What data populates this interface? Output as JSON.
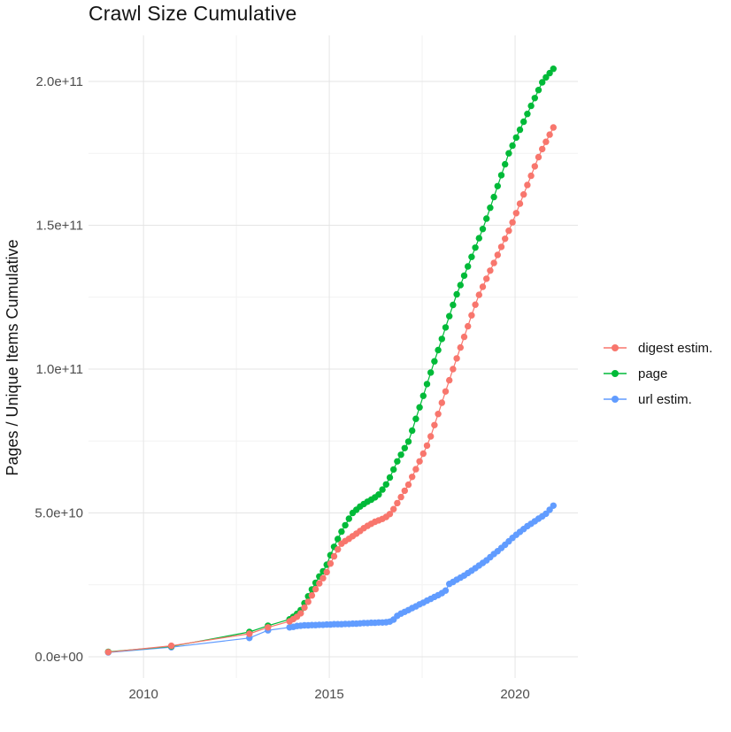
{
  "chart_data": {
    "type": "line",
    "title": "Crawl Size Cumulative",
    "xlabel": "",
    "ylabel": "Pages / Unique Items Cumulative",
    "values_unit_note": "y values stored in billions (1e9)",
    "x_ticks": [
      {
        "value": 2010,
        "label": "2010"
      },
      {
        "value": 2015,
        "label": "2015"
      },
      {
        "value": 2020,
        "label": "2020"
      }
    ],
    "x_minor_ticks": [
      2012.5,
      2017.5
    ],
    "x_range": [
      2008.52,
      2021.69
    ],
    "y_ticks": [
      {
        "value": 0,
        "label": "0.0e+00"
      },
      {
        "value": 50,
        "label": "5.0e+10"
      },
      {
        "value": 100,
        "label": "1.0e+11"
      },
      {
        "value": 150,
        "label": "1.5e+11"
      },
      {
        "value": 200,
        "label": "2.0e+11"
      }
    ],
    "y_minor_ticks": [
      25,
      75,
      125,
      175
    ],
    "y_range": [
      -7.4,
      216
    ],
    "grid": {
      "major_color": "#E5E5E5",
      "minor_color": "#F2F2F2",
      "background": "#FFFFFF"
    },
    "legend_position": "right",
    "x": [
      2009.05,
      2010.75,
      2012.85,
      2013.35,
      2013.93,
      2014.03,
      2014.13,
      2014.23,
      2014.33,
      2014.43,
      2014.53,
      2014.63,
      2014.73,
      2014.83,
      2014.93,
      2015.03,
      2015.13,
      2015.23,
      2015.33,
      2015.43,
      2015.53,
      2015.63,
      2015.73,
      2015.83,
      2015.93,
      2016.03,
      2016.13,
      2016.23,
      2016.33,
      2016.43,
      2016.53,
      2016.63,
      2016.73,
      2016.83,
      2016.93,
      2017.03,
      2017.13,
      2017.23,
      2017.33,
      2017.43,
      2017.53,
      2017.63,
      2017.73,
      2017.83,
      2017.93,
      2018.03,
      2018.13,
      2018.23,
      2018.33,
      2018.43,
      2018.53,
      2018.63,
      2018.73,
      2018.83,
      2018.93,
      2019.03,
      2019.13,
      2019.23,
      2019.33,
      2019.43,
      2019.53,
      2019.63,
      2019.73,
      2019.83,
      2019.93,
      2020.03,
      2020.13,
      2020.23,
      2020.33,
      2020.43,
      2020.53,
      2020.63,
      2020.73,
      2020.83,
      2020.93,
      2021.03
    ],
    "series": [
      {
        "name": "digest estim.",
        "color": "#F8766D",
        "values": [
          1.6,
          3.8,
          8.0,
          10.2,
          12.3,
          13.1,
          13.9,
          15.1,
          17.1,
          19.1,
          21.3,
          23.5,
          25.5,
          27.3,
          29.4,
          32.4,
          34.9,
          37.3,
          39.3,
          40.2,
          41.0,
          41.9,
          42.8,
          43.7,
          44.7,
          45.5,
          46.2,
          46.9,
          47.4,
          47.9,
          48.6,
          49.6,
          51.3,
          53.4,
          55.5,
          57.7,
          59.8,
          62.5,
          65.2,
          67.9,
          70.6,
          73.4,
          76.6,
          80.5,
          84.4,
          88.3,
          92.2,
          96.1,
          100.0,
          103.7,
          107.5,
          111.2,
          114.9,
          118.7,
          122.4,
          125.8,
          128.6,
          131.4,
          134.2,
          136.9,
          139.7,
          142.5,
          145.3,
          148.1,
          151.0,
          154.2,
          157.5,
          160.7,
          164.0,
          167.2,
          170.5,
          173.7,
          176.5,
          179.0,
          181.5,
          184.0
        ]
      },
      {
        "name": "page",
        "color": "#00BA38",
        "values": [
          1.7,
          3.6,
          8.6,
          10.8,
          13.0,
          13.9,
          14.9,
          16.2,
          18.6,
          21.0,
          23.4,
          25.7,
          27.9,
          29.7,
          32.0,
          35.3,
          38.2,
          40.9,
          43.5,
          45.7,
          48.0,
          50.0,
          51.1,
          52.2,
          53.1,
          53.9,
          54.6,
          55.4,
          56.4,
          58.1,
          59.9,
          62.3,
          65.1,
          67.9,
          70.2,
          72.5,
          74.8,
          78.6,
          82.7,
          86.7,
          90.7,
          94.8,
          98.8,
          102.7,
          106.6,
          110.5,
          114.5,
          118.4,
          122.3,
          126.0,
          129.2,
          132.5,
          135.7,
          139.0,
          142.2,
          145.5,
          148.7,
          152.3,
          156.1,
          159.8,
          163.6,
          167.4,
          171.2,
          175.0,
          177.7,
          180.5,
          183.2,
          186.0,
          188.7,
          191.5,
          194.2,
          197.0,
          199.7,
          201.4,
          202.9,
          204.4
        ]
      },
      {
        "name": "url estim.",
        "color": "#619CFF",
        "values": [
          1.5,
          3.3,
          6.5,
          9.2,
          10.2,
          10.4,
          10.7,
          10.8,
          10.9,
          10.9,
          11.0,
          11.0,
          11.1,
          11.1,
          11.2,
          11.2,
          11.3,
          11.3,
          11.3,
          11.4,
          11.4,
          11.5,
          11.5,
          11.6,
          11.7,
          11.7,
          11.8,
          11.8,
          11.9,
          11.9,
          12.0,
          12.2,
          12.9,
          14.2,
          15.0,
          15.6,
          16.2,
          16.9,
          17.5,
          18.2,
          18.8,
          19.5,
          20.1,
          20.8,
          21.4,
          22.1,
          23.0,
          25.3,
          26.0,
          26.8,
          27.5,
          28.2,
          29.1,
          29.9,
          30.8,
          31.7,
          32.6,
          33.5,
          34.6,
          35.7,
          36.7,
          37.8,
          38.9,
          40.1,
          41.3,
          42.4,
          43.4,
          44.4,
          45.4,
          46.2,
          47.1,
          48.0,
          48.8,
          49.7,
          51.1,
          52.5
        ]
      }
    ],
    "legend": [
      {
        "name": "digest estim.",
        "color": "#F8766D"
      },
      {
        "name": "page",
        "color": "#00BA38"
      },
      {
        "name": "url estim.",
        "color": "#619CFF"
      }
    ]
  }
}
